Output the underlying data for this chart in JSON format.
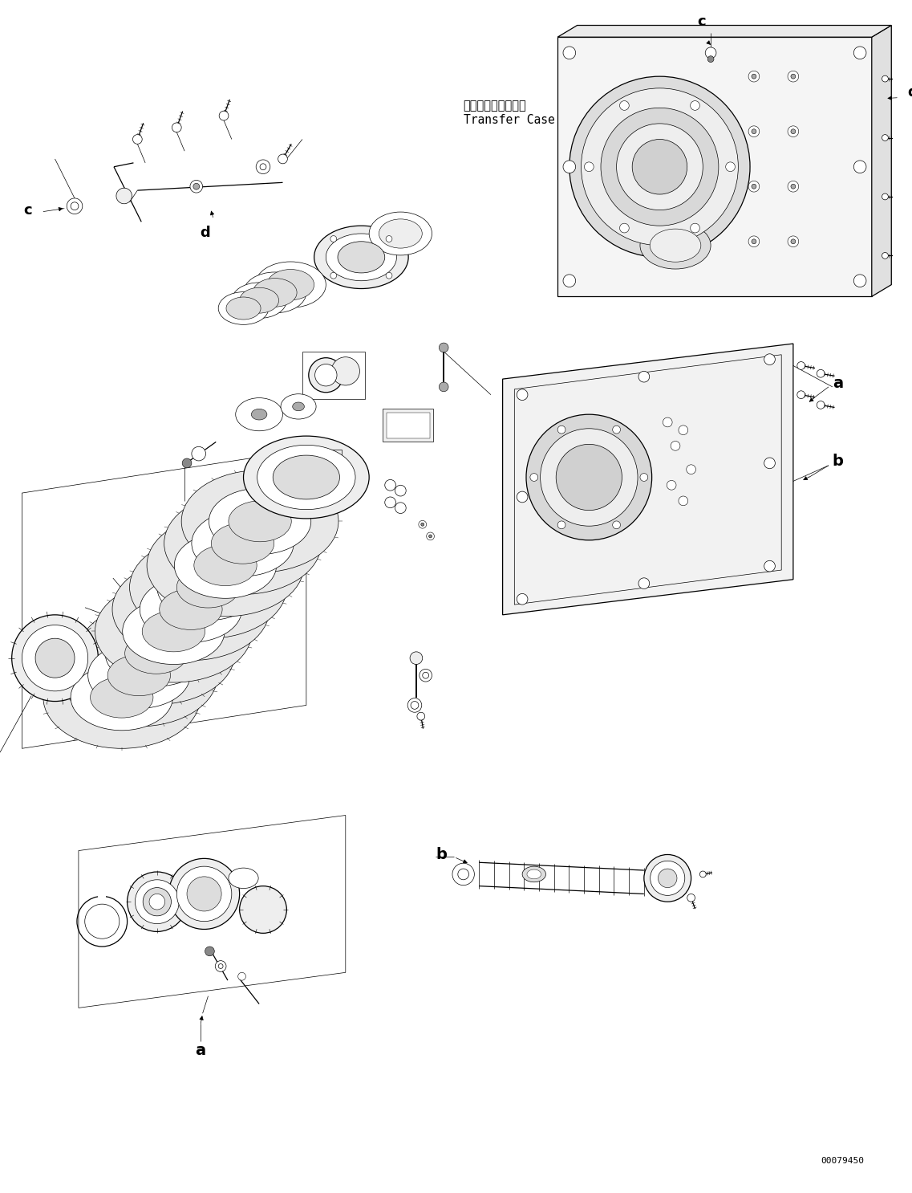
{
  "background_color": "#ffffff",
  "fig_width": 11.37,
  "fig_height": 14.86,
  "watermark": "00079450",
  "transfer_case_jp": "トランスファケース",
  "transfer_case_en": "Transfer Case",
  "label_a": "a",
  "label_b": "b",
  "label_c": "c",
  "label_d": "d",
  "lw_thin": 0.5,
  "lw_med": 0.9,
  "lw_thick": 1.4
}
